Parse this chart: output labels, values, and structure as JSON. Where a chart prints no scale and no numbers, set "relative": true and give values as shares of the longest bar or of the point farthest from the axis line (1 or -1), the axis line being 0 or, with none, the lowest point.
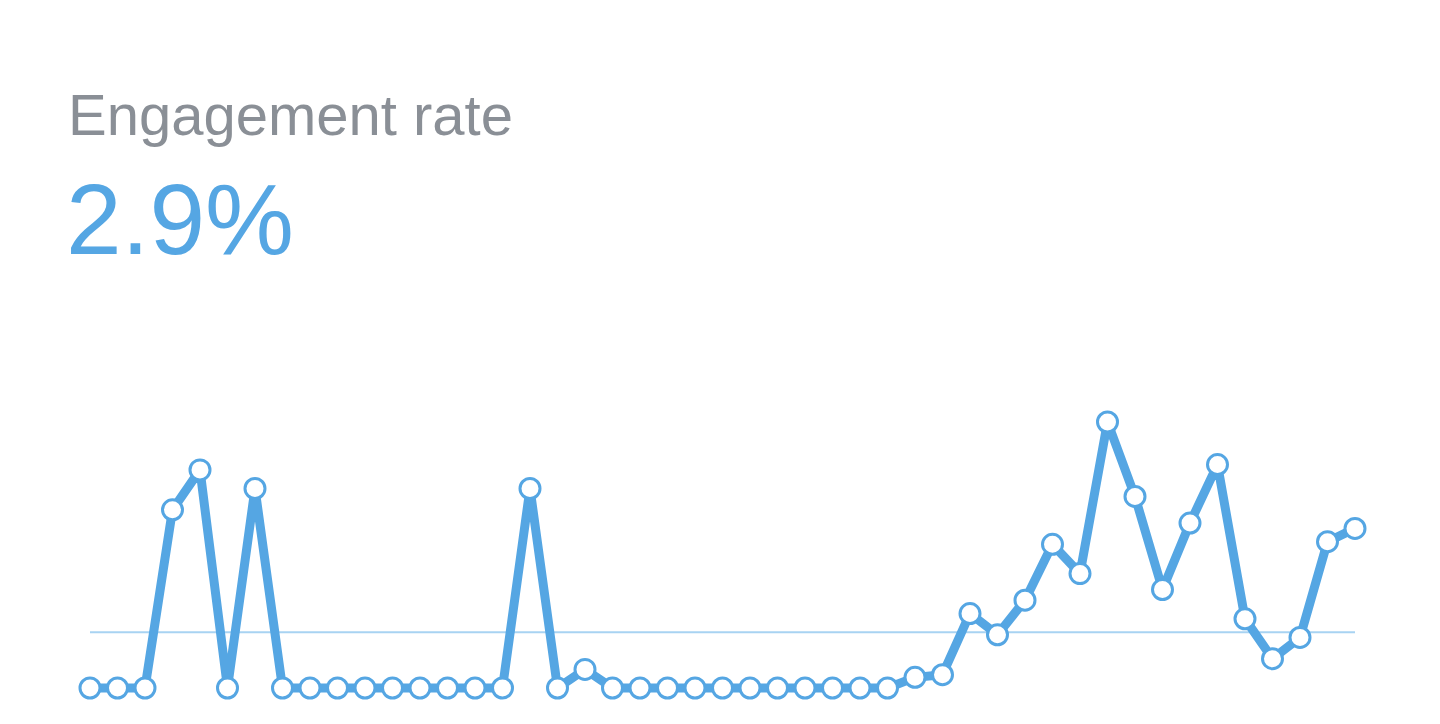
{
  "chart_data": {
    "type": "line",
    "title": "Engagement rate",
    "subtitle": "2.9%",
    "relative": true,
    "marker": "circle",
    "categories": [
      null,
      null,
      null,
      null,
      null,
      null,
      null,
      null,
      null,
      null,
      null,
      null,
      null,
      null,
      null,
      null,
      null,
      null,
      null,
      null,
      null,
      null,
      null,
      null,
      null,
      null,
      null,
      null,
      null,
      null,
      null,
      null,
      null,
      null,
      null,
      null,
      null,
      null,
      null,
      null,
      null,
      null,
      null,
      null,
      null,
      null,
      null
    ],
    "series": [
      {
        "color": "#55a6e3",
        "values": [
          0,
          0,
          0,
          0.67,
          0.82,
          0,
          0.75,
          0,
          0,
          0,
          0,
          0,
          0,
          0,
          0,
          0,
          0.75,
          0,
          0.07,
          0,
          0,
          0,
          0,
          0,
          0,
          0,
          0,
          0,
          0,
          0,
          0.04,
          0.05,
          0.28,
          0.2,
          0.33,
          0.54,
          0.43,
          1,
          0.72,
          0.37,
          0.62,
          0.84,
          0.26,
          0.11,
          0.19,
          0.55,
          0.6
        ]
      }
    ],
    "ref_lines": [
      {
        "axis": "y",
        "value": 0.21,
        "color": "#a8d3f2"
      }
    ]
  }
}
